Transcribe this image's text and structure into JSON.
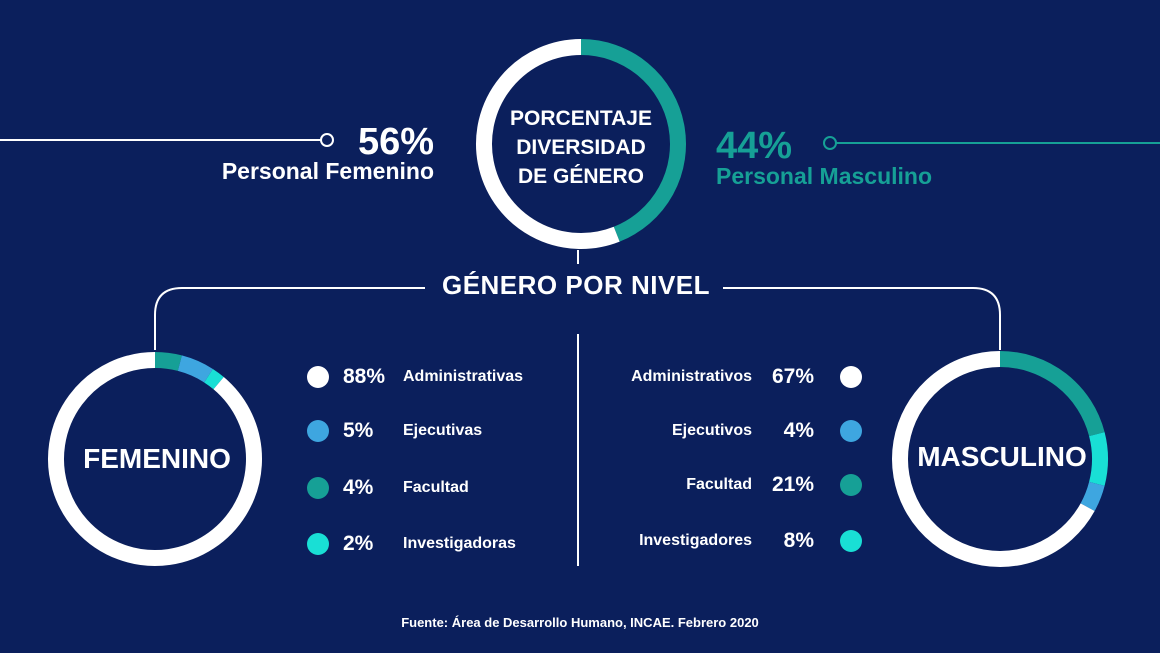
{
  "colors": {
    "background": "#0b1f5c",
    "white": "#ffffff",
    "blue": "#3ea6e0",
    "teal": "#16a096",
    "cyan": "#19dfd5"
  },
  "header": {
    "title_lines": [
      "PORCENTAJE",
      "DIVERSIDAD",
      "DE GÉNERO"
    ],
    "female_pct": "56%",
    "female_label": "Personal Femenino",
    "male_pct": "44%",
    "male_label": "Personal Masculino"
  },
  "level_title": "GÉNERO POR NIVEL",
  "femenino": {
    "label": "FEMENINO",
    "items": [
      {
        "pct": "88%",
        "label": "Administrativas",
        "color": "#ffffff"
      },
      {
        "pct": "5%",
        "label": "Ejecutivas",
        "color": "#3ea6e0"
      },
      {
        "pct": "4%",
        "label": "Facultad",
        "color": "#16a096"
      },
      {
        "pct": "2%",
        "label": "Investigadoras",
        "color": "#19dfd5"
      }
    ]
  },
  "masculino": {
    "label": "MASCULINO",
    "items": [
      {
        "pct": "67%",
        "label": "Administrativos",
        "color": "#ffffff"
      },
      {
        "pct": "4%",
        "label": "Ejecutivos",
        "color": "#3ea6e0"
      },
      {
        "pct": "21%",
        "label": "Facultad",
        "color": "#16a096"
      },
      {
        "pct": "8%",
        "label": "Investigadores",
        "color": "#19dfd5"
      }
    ]
  },
  "source": "Fuente: Área de Desarrollo Humano, INCAE. Febrero 2020",
  "chart_data": [
    {
      "type": "pie",
      "title": "PORCENTAJE DIVERSIDAD DE GÉNERO",
      "categories": [
        "Personal Masculino",
        "Personal Femenino"
      ],
      "values": [
        44,
        56
      ],
      "colors": [
        "#16a096",
        "#ffffff"
      ]
    },
    {
      "type": "pie",
      "title": "FEMENINO",
      "categories": [
        "Facultad",
        "Ejecutivas",
        "Investigadoras",
        "Administrativas"
      ],
      "values": [
        4,
        5,
        2,
        88
      ],
      "colors": [
        "#16a096",
        "#3ea6e0",
        "#19dfd5",
        "#ffffff"
      ]
    },
    {
      "type": "pie",
      "title": "MASCULINO",
      "categories": [
        "Facultad",
        "Investigadores",
        "Ejecutivos",
        "Administrativos"
      ],
      "values": [
        21,
        8,
        4,
        67
      ],
      "colors": [
        "#16a096",
        "#19dfd5",
        "#3ea6e0",
        "#ffffff"
      ]
    }
  ]
}
